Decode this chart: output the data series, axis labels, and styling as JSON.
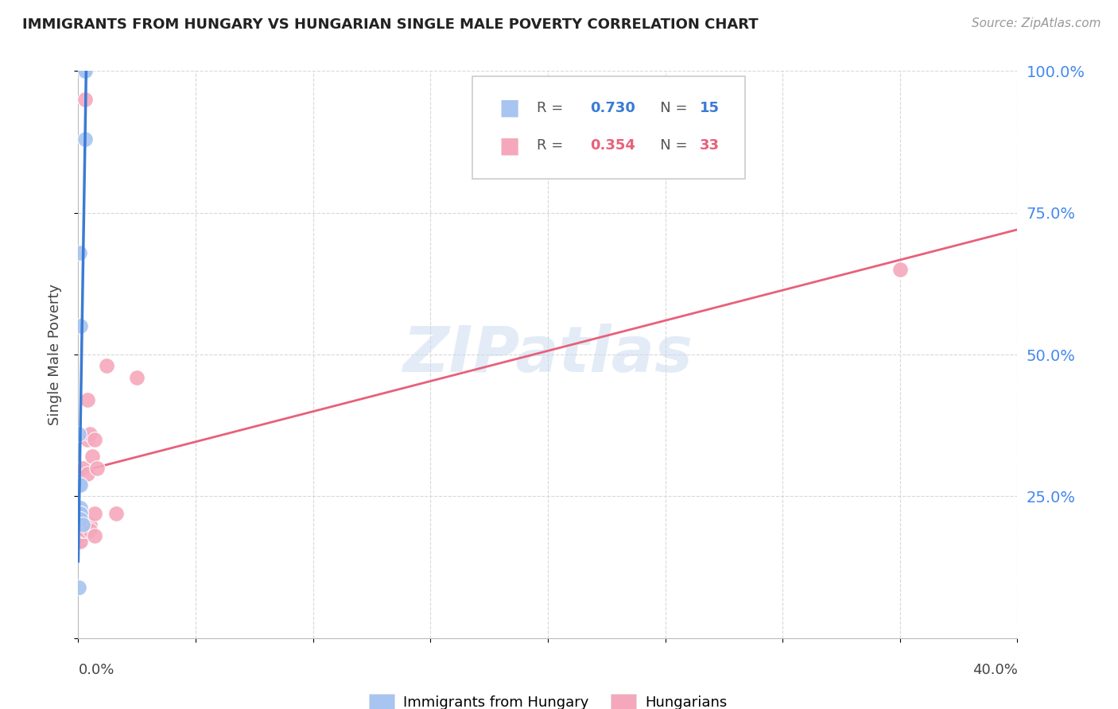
{
  "title": "IMMIGRANTS FROM HUNGARY VS HUNGARIAN SINGLE MALE POVERTY CORRELATION CHART",
  "source": "Source: ZipAtlas.com",
  "ylabel": "Single Male Poverty",
  "blue_r": "0.730",
  "blue_n": "15",
  "pink_r": "0.354",
  "pink_n": "33",
  "blue_color": "#a8c4f0",
  "pink_color": "#f5a8bc",
  "blue_line_color": "#3a7bd5",
  "pink_line_color": "#e8607a",
  "watermark": "ZIPatlas",
  "blue_points_x": [
    0.002,
    0.003,
    0.003,
    0.003,
    0.0005,
    0.001,
    0.0003,
    0.0003,
    0.001,
    0.001,
    0.001,
    0.0008,
    0.0008,
    0.002,
    0.0003
  ],
  "blue_points_y": [
    1.0,
    1.0,
    1.0,
    0.88,
    0.68,
    0.55,
    0.36,
    0.27,
    0.27,
    0.23,
    0.22,
    0.22,
    0.21,
    0.2,
    0.09
  ],
  "pink_points_x": [
    0.0003,
    0.0003,
    0.0003,
    0.0003,
    0.0003,
    0.0003,
    0.0003,
    0.001,
    0.001,
    0.001,
    0.001,
    0.001,
    0.002,
    0.002,
    0.002,
    0.003,
    0.003,
    0.004,
    0.003,
    0.004,
    0.004,
    0.005,
    0.005,
    0.005,
    0.006,
    0.007,
    0.007,
    0.007,
    0.008,
    0.012,
    0.016,
    0.025,
    0.35
  ],
  "pink_points_y": [
    0.22,
    0.21,
    0.21,
    0.2,
    0.19,
    0.18,
    0.17,
    0.22,
    0.21,
    0.19,
    0.18,
    0.17,
    0.3,
    0.21,
    0.19,
    1.0,
    0.95,
    0.42,
    0.19,
    0.35,
    0.29,
    0.2,
    0.36,
    0.19,
    0.32,
    0.35,
    0.22,
    0.18,
    0.3,
    0.48,
    0.22,
    0.46,
    0.65
  ],
  "xlim": [
    0,
    0.4
  ],
  "ylim": [
    0,
    1.0
  ],
  "background_color": "#ffffff",
  "grid_color": "#d8d8d8",
  "legend_label_blue": "Immigrants from Hungary",
  "legend_label_pink": "Hungarians"
}
